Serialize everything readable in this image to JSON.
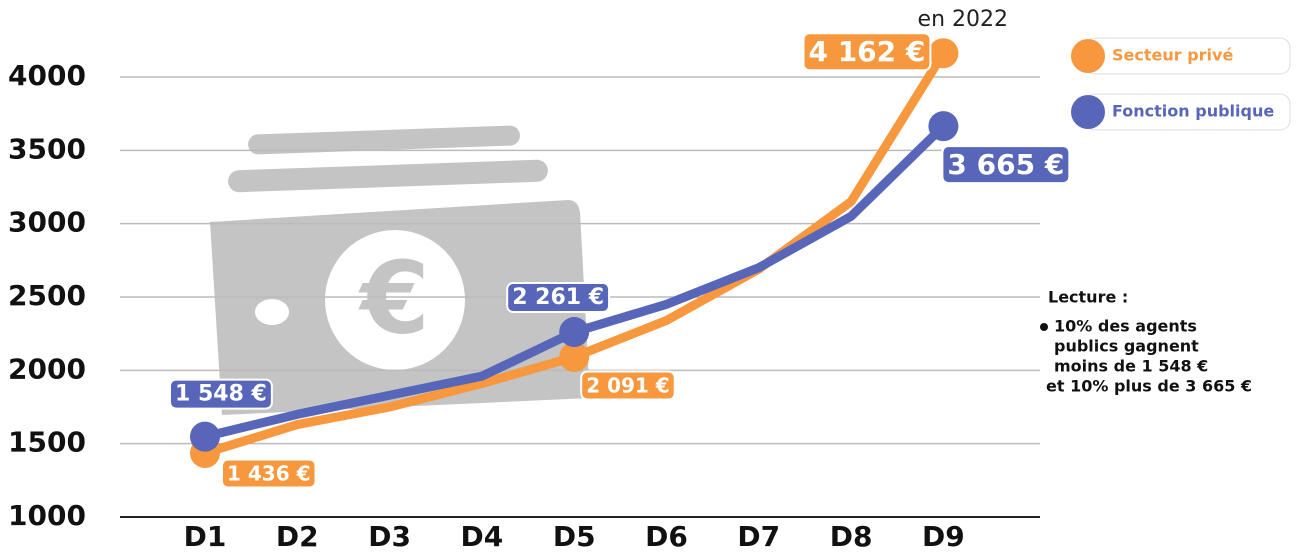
{
  "chart_data": {
    "type": "line",
    "subtitle": "en 2022",
    "categories": [
      "D1",
      "D2",
      "D3",
      "D4",
      "D5",
      "D6",
      "D7",
      "D8",
      "D9"
    ],
    "series": [
      {
        "name": "Secteur privé",
        "color": "#f7983f",
        "values": [
          1436,
          1630,
          1750,
          1910,
          2091,
          2340,
          2690,
          3150,
          4162
        ],
        "value_labels": [
          "1 436 €",
          null,
          null,
          null,
          "2 091 €",
          null,
          null,
          null,
          "4 162 €"
        ]
      },
      {
        "name": "Fonction publique",
        "color": "#5766b8",
        "values": [
          1548,
          1700,
          1830,
          1960,
          2261,
          2450,
          2700,
          3050,
          3665
        ],
        "value_labels": [
          "1 548 €",
          null,
          null,
          null,
          "2 261 €",
          null,
          null,
          null,
          "3 665 €"
        ]
      }
    ],
    "ylim": [
      1000,
      4000
    ],
    "yticks": [
      1000,
      1500,
      2000,
      2500,
      3000,
      3500,
      4000
    ],
    "grid": true,
    "legend": "right",
    "annotation": {
      "title": "Lecture :",
      "lines": [
        "10% des agents",
        "publics gagnent",
        "moins de 1 548 €",
        "et 10% plus de 3 665 €"
      ]
    }
  }
}
